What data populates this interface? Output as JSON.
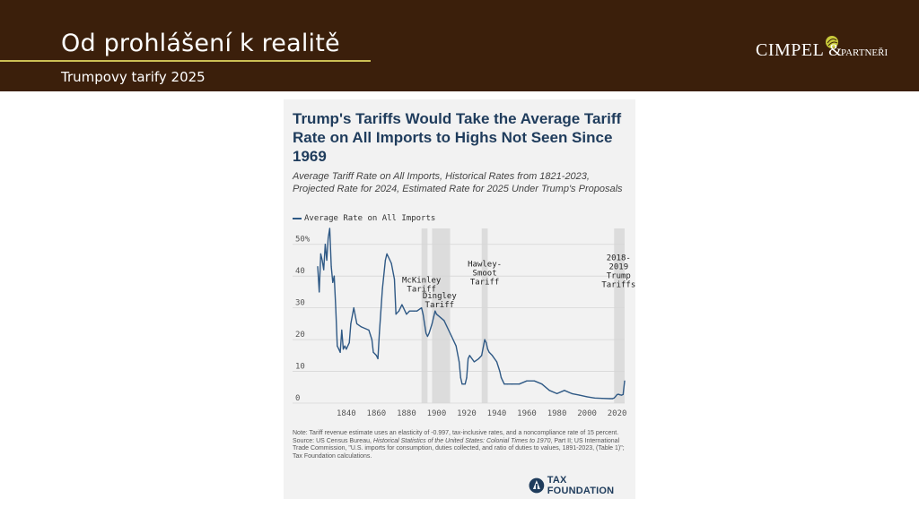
{
  "slide": {
    "title": "Od prohlášení k realitě",
    "subtitle": "Trumpovy tarify 2025"
  },
  "logo": {
    "name": "CIMPEL",
    "amp": "&",
    "partner": "PARTNEŘI"
  },
  "figure": {
    "title": "Trump's Tariffs Would Take the Average Tariff Rate on All Imports to Highs Not Seen Since 1969",
    "subtitle": "Average Tariff Rate on All Imports, Historical Rates from 1821-2023, Projected Rate for 2024, Estimated Rate for 2025 Under Trump's Proposals",
    "note": "Note: Tariff revenue estimate uses an elasticity of -0.997, tax-inclusive rates, and a noncompliance rate of 15 percent.",
    "source_prefix": "Source: US Census Bureau, ",
    "source_italic": "Historical Statistics of the United States: Colonial Times to 1970",
    "source_suffix": ", Part II; US International Trade Commission, \"U.S. imports for consumption, duties collected, and ratio of duties to values, 1891-2023, (Table 1)\"; Tax Foundation calculations.",
    "brand": "TAX FOUNDATION"
  },
  "chart_data": {
    "type": "line",
    "title": "Trump's Tariffs Would Take the Average Tariff Rate on All Imports to Highs Not Seen Since 1969",
    "xlabel": "",
    "ylabel": "",
    "xlim": [
      1821,
      2025
    ],
    "ylim": [
      0,
      55
    ],
    "x_ticks": [
      1840,
      1860,
      1880,
      1900,
      1920,
      1940,
      1960,
      1980,
      2000,
      2020
    ],
    "y_ticks": [
      0,
      10,
      20,
      30,
      40,
      50
    ],
    "y_tick_labels": [
      "0",
      "10",
      "20",
      "30",
      "40",
      "50%"
    ],
    "grid": true,
    "legend": "top-left",
    "colors": {
      "line": "#2f5985",
      "band": "#dcdcdc"
    },
    "series": [
      {
        "name": "Average Rate on All Imports",
        "x": [
          1821,
          1822,
          1823,
          1824,
          1825,
          1826,
          1827,
          1828,
          1829,
          1830,
          1831,
          1832,
          1833,
          1834,
          1835,
          1836,
          1837,
          1838,
          1839,
          1840,
          1842,
          1843,
          1845,
          1847,
          1850,
          1855,
          1857,
          1858,
          1860,
          1861,
          1862,
          1864,
          1866,
          1867,
          1869,
          1870,
          1872,
          1873,
          1875,
          1877,
          1880,
          1882,
          1885,
          1887,
          1890,
          1891,
          1893,
          1894,
          1895,
          1897,
          1899,
          1900,
          1905,
          1910,
          1913,
          1915,
          1916,
          1917,
          1918,
          1919,
          1920,
          1921,
          1922,
          1925,
          1928,
          1930,
          1932,
          1933,
          1934,
          1935,
          1937,
          1940,
          1942,
          1943,
          1944,
          1945,
          1947,
          1950,
          1955,
          1960,
          1965,
          1970,
          1975,
          1980,
          1985,
          1990,
          1995,
          2000,
          2005,
          2010,
          2015,
          2017,
          2018,
          2019,
          2020,
          2021,
          2022,
          2023,
          2024,
          2025
        ],
        "y": [
          43,
          35,
          47,
          45,
          42,
          50,
          45,
          52,
          55,
          43,
          38,
          40,
          30,
          18,
          17,
          16,
          23,
          17,
          18,
          17,
          19,
          25,
          30,
          25,
          24,
          23,
          20,
          16,
          15,
          14,
          22,
          36,
          45,
          47,
          45,
          44,
          39,
          28,
          29,
          31,
          28,
          29,
          29,
          29,
          30,
          28,
          22,
          21,
          22,
          25,
          29,
          28,
          26,
          21,
          18,
          13,
          8,
          6,
          6,
          6,
          8,
          14,
          15,
          13,
          14,
          15,
          20,
          19,
          17,
          16,
          15,
          13,
          10,
          8,
          7,
          6,
          6,
          6,
          6,
          7,
          7,
          6,
          4,
          3,
          4,
          3,
          2.5,
          2,
          1.6,
          1.5,
          1.4,
          1.4,
          1.6,
          2.1,
          2.7,
          2.8,
          2.6,
          2.5,
          2.7,
          7
        ]
      }
    ],
    "bands": [
      {
        "start": 1890,
        "end": 1894
      },
      {
        "start": 1897,
        "end": 1909
      },
      {
        "start": 1930,
        "end": 1934
      },
      {
        "start": 2018,
        "end": 2025
      }
    ],
    "annotations": [
      {
        "x": 1890,
        "y": 38,
        "lines": [
          "McKinley",
          "Tariff"
        ]
      },
      {
        "x": 1902,
        "y": 33,
        "lines": [
          "Dingley",
          "Tariff"
        ]
      },
      {
        "x": 1932,
        "y": 43,
        "lines": [
          "Hawley-",
          "Smoot",
          "Tariff"
        ]
      },
      {
        "x": 2021,
        "y": 45,
        "lines": [
          "2018-",
          "2019",
          "Trump",
          "Tariffs"
        ]
      }
    ]
  }
}
